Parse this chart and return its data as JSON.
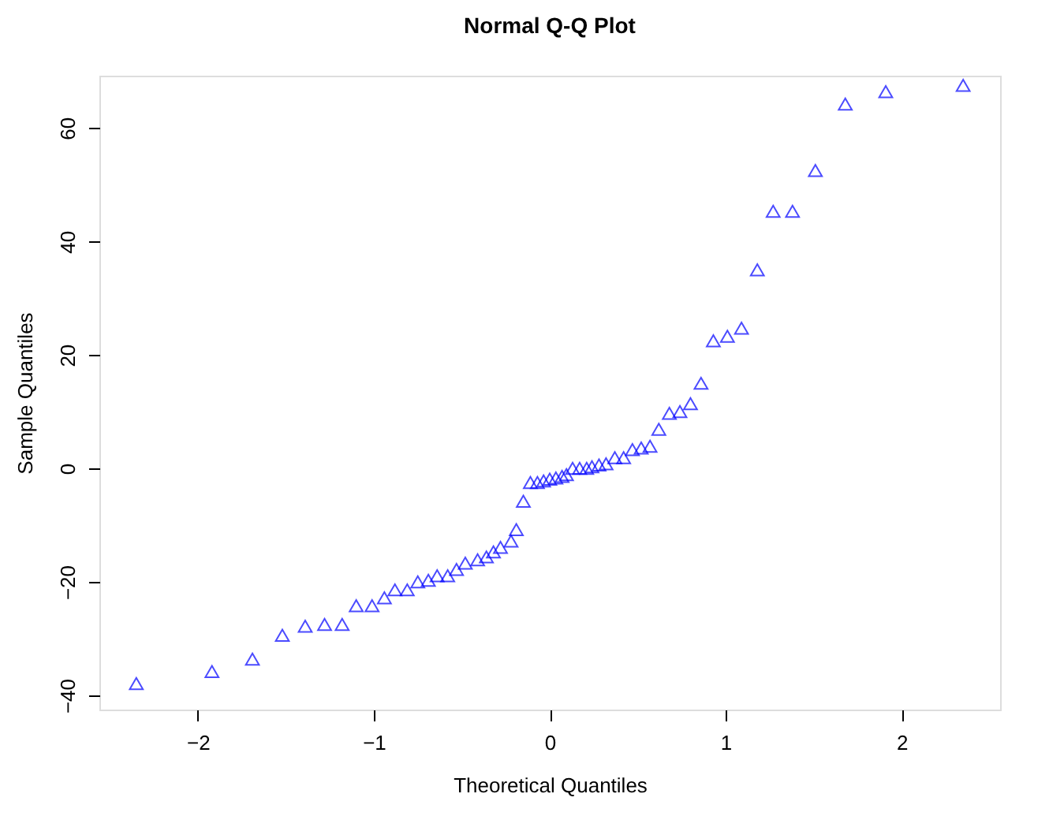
{
  "chart_data": {
    "type": "scatter",
    "title": "Normal Q-Q Plot",
    "xlabel": "Theoretical Quantiles",
    "ylabel": "Sample Quantiles",
    "x": [
      -2.35,
      -1.92,
      -1.69,
      -1.52,
      -1.39,
      -1.28,
      -1.18,
      -1.1,
      -1.01,
      -0.94,
      -0.88,
      -0.81,
      -0.75,
      -0.69,
      -0.64,
      -0.58,
      -0.53,
      -0.48,
      -0.41,
      -0.36,
      -0.32,
      -0.28,
      -0.22,
      -0.19,
      -0.15,
      -0.11,
      -0.07,
      -0.035,
      0,
      0.035,
      0.07,
      0.095,
      0.13,
      0.17,
      0.21,
      0.24,
      0.28,
      0.32,
      0.37,
      0.42,
      0.47,
      0.52,
      0.57,
      0.62,
      0.68,
      0.74,
      0.8,
      0.86,
      0.93,
      1.01,
      1.09,
      1.18,
      1.27,
      1.38,
      1.51,
      1.68,
      1.91,
      2.35
    ],
    "series": [
      {
        "color": "#0000ff",
        "values": [
          -37.9,
          -35.8,
          -33.6,
          -29.4,
          -27.8,
          -27.5,
          -27.5,
          -24.2,
          -24.2,
          -22.8,
          -21.4,
          -21.4,
          -20,
          -19.7,
          -18.9,
          -18.9,
          -17.8,
          -16.7,
          -16.1,
          -15.6,
          -14.7,
          -13.9,
          -12.8,
          -10.8,
          -5.8,
          -2.5,
          -2.5,
          -2.2,
          -1.9,
          -1.7,
          -1.4,
          -1.1,
          0,
          0,
          0,
          0.3,
          0.6,
          0.8,
          1.9,
          1.9,
          3.3,
          3.6,
          3.9,
          6.9,
          9.7,
          10,
          11.4,
          15,
          22.5,
          23.3,
          24.7,
          35,
          45.3,
          45.3,
          52.5,
          64.2,
          66.4,
          67.5
        ]
      }
    ],
    "marker": "triangle",
    "xlim": [
      -2.56,
      2.56
    ],
    "ylim": [
      -42.5,
      69.2
    ],
    "xticks": [
      -2,
      -1,
      0,
      1,
      2
    ],
    "yticks": [
      -40,
      -20,
      0,
      20,
      40,
      60
    ],
    "grid": false,
    "legend": false
  }
}
